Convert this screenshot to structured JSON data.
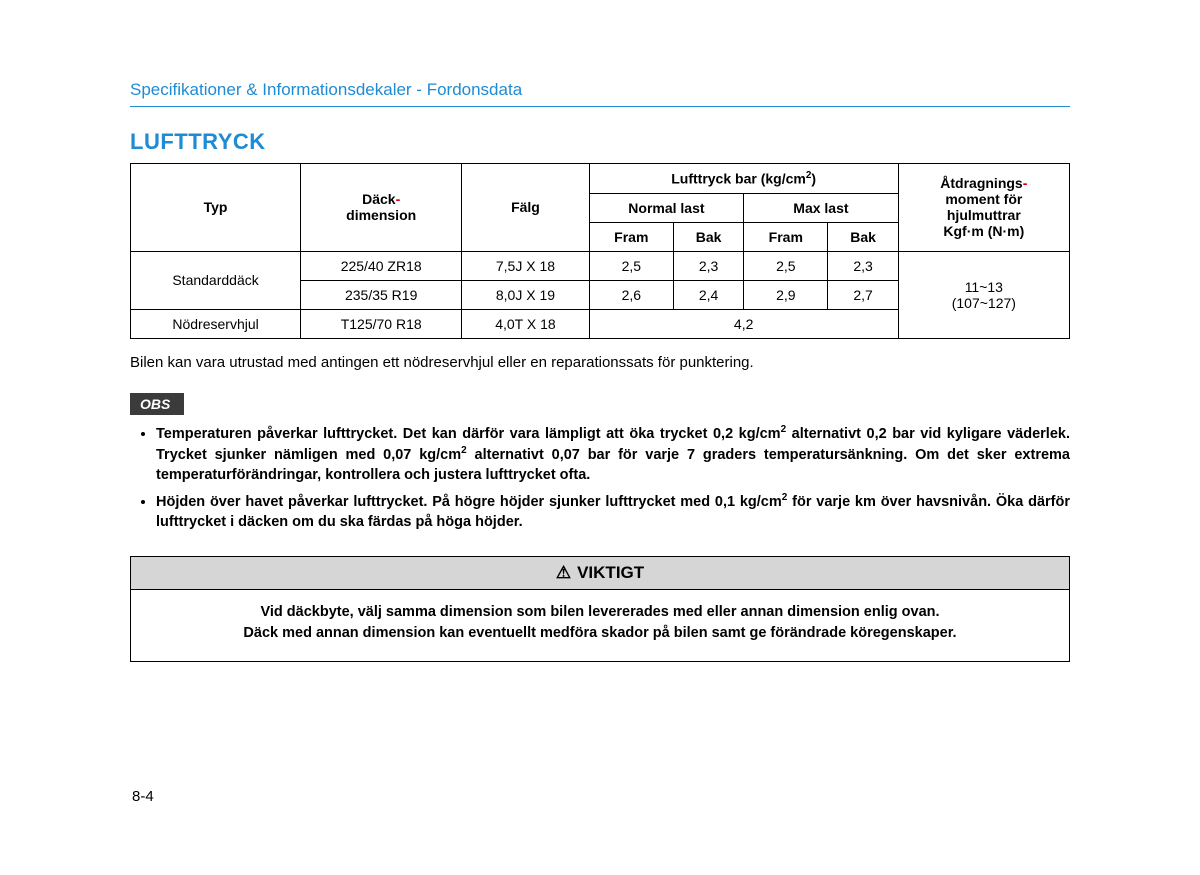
{
  "header": {
    "text": "Specifikationer & Informationsdekaler - Fordonsdata"
  },
  "section_title": "LUFTTRYCK",
  "table": {
    "headers": {
      "typ": "Typ",
      "dack_dimension_pre": "Däck",
      "dack_dimension_post": "dimension",
      "falg": "Fälg",
      "lufttryck": "Lufttryck bar (kg/cm",
      "lufttryck_sup": "2",
      "lufttryck_close": ")",
      "normal_last": "Normal last",
      "max_last": "Max last",
      "fram": "Fram",
      "bak": "Bak",
      "torque_pre": "Åtdragnings",
      "torque_l2": "moment för",
      "torque_l3": "hjulmuttrar",
      "torque_l4": "Kgf·m (N·m)"
    },
    "rows": [
      {
        "typ": "Standarddäck",
        "dim": "225/40 ZR18",
        "falg": "7,5J X 18",
        "nf": "2,5",
        "nb": "2,3",
        "mf": "2,5",
        "mb": "2,3"
      },
      {
        "typ": "",
        "dim": "235/35 R19",
        "falg": "8,0J X 19",
        "nf": "2,6",
        "nb": "2,4",
        "mf": "2,9",
        "mb": "2,7"
      },
      {
        "typ": "Nödreservhjul",
        "dim": "T125/70 R18",
        "falg": "4,0T X 18",
        "merged": "4,2"
      }
    ],
    "torque_value_l1": "11~13",
    "torque_value_l2": "(107~127)"
  },
  "body_text": "Bilen kan vara utrustad med antingen ett nödreservhjul eller en reparationssats för punktering.",
  "obs_label": "OBS",
  "obs_items": {
    "a_pre": "Temperaturen påverkar lufttrycket. Det kan därför vara lämpligt att öka trycket 0,2 kg/cm",
    "a_sup": "2",
    "a_mid": " alternativt 0,2 bar vid kyligare väderlek. Trycket sjunker nämligen med 0,07 kg/cm",
    "a_post": " alternativt 0,07 bar för varje 7 graders temperatursänkning. Om det sker extrema temperaturförändringar, kontrollera och justera lufttrycket ofta.",
    "b_pre": "Höjden över havet påverkar lufttrycket. På högre höjder sjunker lufttrycket med 0,1 kg/cm",
    "b_sup": "2",
    "b_post": " för varje km över havsnivån. Öka därför lufttrycket i däcken om du ska färdas på höga höjder."
  },
  "viktigt": {
    "title": "VIKTIGT",
    "line1": "Vid däckbyte, välj samma dimension som bilen levererades med eller annan dimension enlig ovan.",
    "line2": "Däck med annan dimension kan eventuellt medföra skador på bilen samt ge förändrade köregenskaper."
  },
  "page_number": "8-4"
}
